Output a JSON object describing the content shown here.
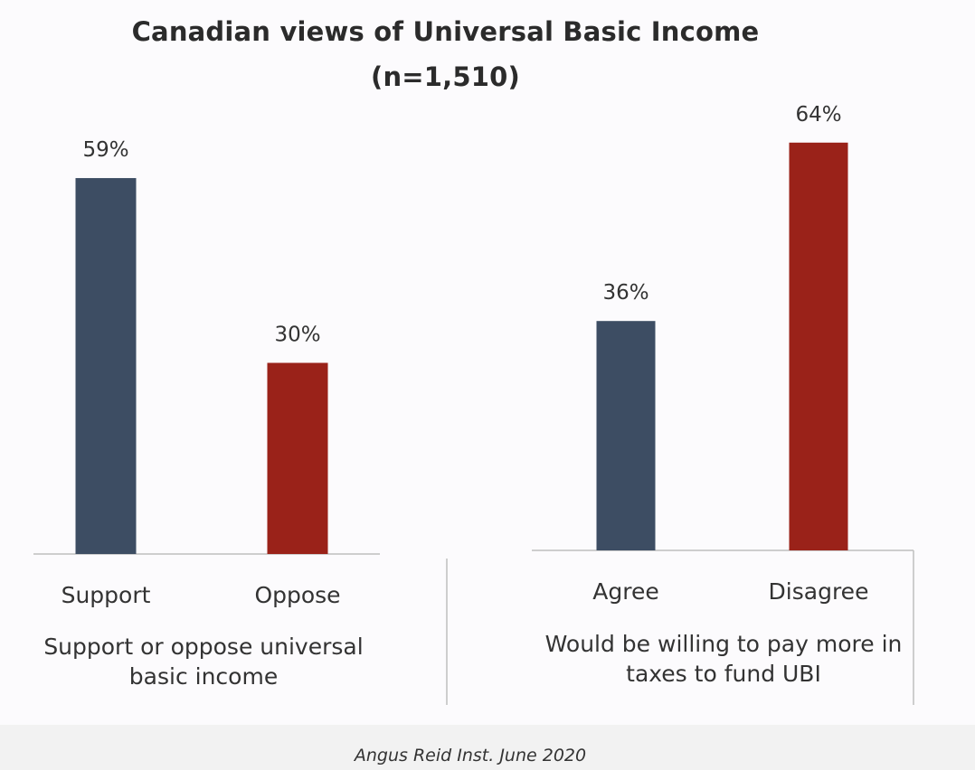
{
  "title": "Canadian views of Universal Basic Income",
  "subtitle": "(n=1,510)",
  "source": "Angus Reid Inst. June 2020",
  "colors": {
    "positive": "#3d4d63",
    "negative": "#9a2219",
    "axis": "#bfbfbf"
  },
  "chart_data": [
    {
      "type": "bar",
      "xlabel": "Support or oppose universal basic income",
      "categories": [
        "Support",
        "Oppose"
      ],
      "values": [
        59,
        30
      ],
      "labels": [
        "59%",
        "30%"
      ],
      "colors": [
        "#3d4d63",
        "#9a2219"
      ]
    },
    {
      "type": "bar",
      "xlabel": "Would be willing to pay more in taxes to fund UBI",
      "categories": [
        "Agree",
        "Disagree"
      ],
      "values": [
        36,
        64
      ],
      "labels": [
        "36%",
        "64%"
      ],
      "colors": [
        "#3d4d63",
        "#9a2219"
      ]
    }
  ]
}
